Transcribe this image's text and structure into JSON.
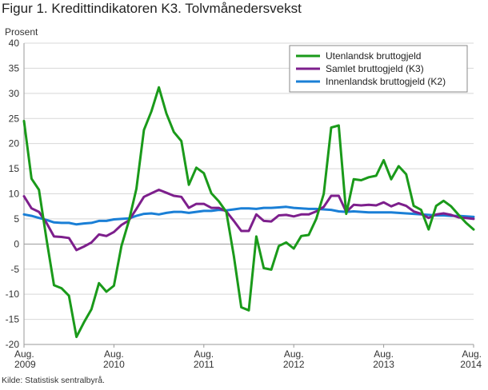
{
  "title": "Figur 1. Kredittindikatoren K3. Tolvmånedersvekst",
  "source": "Kilde: Statistisk sentralbyrå.",
  "chart_data": {
    "type": "line",
    "ylabel": "Prosent",
    "ylim": [
      -20,
      40
    ],
    "yticks": [
      -20,
      -15,
      -10,
      -5,
      0,
      5,
      10,
      15,
      20,
      25,
      30,
      35,
      40
    ],
    "grid": true,
    "legend_position": "top-right",
    "x": [
      "2009-08",
      "2009-09",
      "2009-10",
      "2009-11",
      "2009-12",
      "2010-01",
      "2010-02",
      "2010-03",
      "2010-04",
      "2010-05",
      "2010-06",
      "2010-07",
      "2010-08",
      "2010-09",
      "2010-10",
      "2010-11",
      "2010-12",
      "2011-01",
      "2011-02",
      "2011-03",
      "2011-04",
      "2011-05",
      "2011-06",
      "2011-07",
      "2011-08",
      "2011-09",
      "2011-10",
      "2011-11",
      "2011-12",
      "2012-01",
      "2012-02",
      "2012-03",
      "2012-04",
      "2012-05",
      "2012-06",
      "2012-07",
      "2012-08",
      "2012-09",
      "2012-10",
      "2012-11",
      "2012-12",
      "2013-01",
      "2013-02",
      "2013-03",
      "2013-04",
      "2013-05",
      "2013-06",
      "2013-07",
      "2013-08",
      "2013-09",
      "2013-10",
      "2013-11",
      "2013-12",
      "2014-01",
      "2014-02",
      "2014-03",
      "2014-04",
      "2014-05",
      "2014-06",
      "2014-07",
      "2014-08"
    ],
    "xticks": [
      {
        "at": "2009-08",
        "month": "Aug.",
        "year": "2009"
      },
      {
        "at": "2010-08",
        "month": "Aug.",
        "year": "2010"
      },
      {
        "at": "2011-08",
        "month": "Aug.",
        "year": "2011"
      },
      {
        "at": "2012-08",
        "month": "Aug.",
        "year": "2012"
      },
      {
        "at": "2013-08",
        "month": "Aug.",
        "year": "2013"
      },
      {
        "at": "2014-08",
        "month": "Aug.",
        "year": "2014"
      }
    ],
    "series": [
      {
        "name": "Utenlandsk bruttogjeld",
        "color": "#1a9a1a",
        "values": [
          24.5,
          13.0,
          10.8,
          1.0,
          -8.2,
          -8.8,
          -10.3,
          -18.5,
          -15.6,
          -13.0,
          -7.8,
          -9.5,
          -8.3,
          -0.4,
          4.6,
          11.0,
          22.7,
          26.4,
          31.2,
          26.0,
          22.3,
          20.5,
          11.8,
          15.2,
          14.1,
          10.1,
          8.5,
          6.4,
          -2.4,
          -12.6,
          -13.2,
          1.5,
          -4.8,
          -5.1,
          -0.4,
          0.3,
          -0.9,
          1.6,
          1.8,
          5.0,
          10.0,
          23.2,
          23.6,
          6.0,
          12.9,
          12.7,
          13.3,
          13.6,
          16.7,
          12.9,
          15.5,
          13.9,
          7.6,
          6.8,
          2.9,
          7.6,
          8.6,
          7.5,
          5.8,
          4.2,
          2.9
        ]
      },
      {
        "name": "Samlet bruttogjeld (K3)",
        "color": "#7d1f8c",
        "values": [
          9.5,
          7.1,
          6.4,
          4.2,
          1.5,
          1.4,
          1.2,
          -1.2,
          -0.5,
          0.3,
          1.9,
          1.6,
          2.4,
          3.8,
          4.7,
          7.0,
          9.4,
          10.1,
          10.8,
          10.2,
          9.6,
          9.4,
          7.2,
          8.0,
          8.0,
          7.2,
          7.2,
          6.5,
          4.6,
          2.6,
          2.6,
          5.9,
          4.6,
          4.5,
          5.7,
          5.8,
          5.5,
          5.9,
          5.9,
          6.5,
          7.4,
          9.6,
          9.6,
          6.4,
          7.8,
          7.7,
          7.8,
          7.7,
          8.3,
          7.5,
          8.1,
          7.6,
          6.5,
          6.0,
          5.2,
          5.9,
          6.1,
          5.8,
          5.3,
          5.2,
          5.0
        ]
      },
      {
        "name": "Innenlandsk bruttogjeld (K2)",
        "color": "#1a7fd6",
        "values": [
          5.9,
          5.6,
          5.2,
          4.8,
          4.3,
          4.2,
          4.2,
          3.9,
          4.1,
          4.2,
          4.6,
          4.6,
          4.9,
          5.0,
          5.1,
          5.6,
          6.0,
          6.1,
          5.9,
          6.2,
          6.4,
          6.4,
          6.2,
          6.4,
          6.6,
          6.6,
          6.8,
          6.7,
          6.9,
          7.1,
          7.1,
          7.0,
          7.2,
          7.2,
          7.3,
          7.4,
          7.2,
          7.1,
          7.0,
          7.0,
          6.9,
          6.8,
          6.5,
          6.4,
          6.5,
          6.4,
          6.3,
          6.3,
          6.3,
          6.3,
          6.2,
          6.1,
          6.0,
          5.9,
          5.8,
          5.7,
          5.7,
          5.6,
          5.6,
          5.5,
          5.4
        ]
      }
    ]
  }
}
